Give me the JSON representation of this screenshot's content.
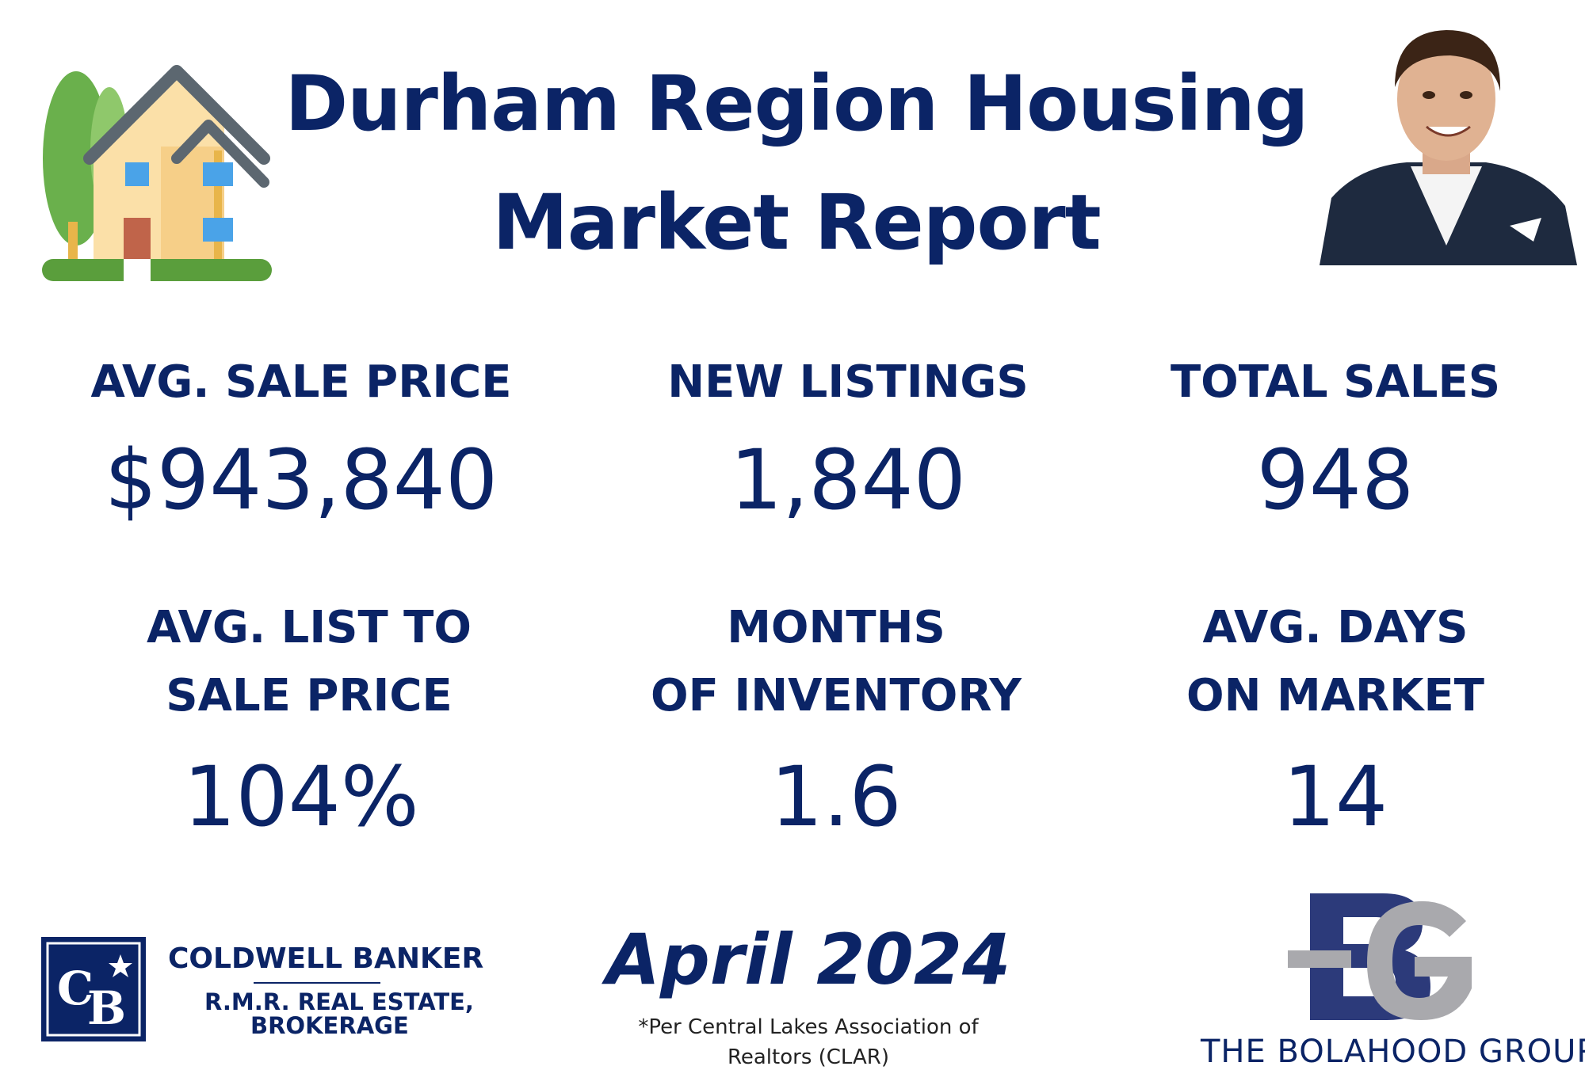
{
  "header": {
    "title_line1": "Durham Region Housing",
    "title_line2": "Market Report"
  },
  "stats": {
    "avg_sale_price": {
      "label": "AVG. SALE PRICE",
      "value": "$943,840"
    },
    "new_listings": {
      "label": "NEW LISTINGS",
      "value": "1,840"
    },
    "total_sales": {
      "label": "TOTAL SALES",
      "value": "948"
    },
    "list_to_sale": {
      "label_line1": "AVG. LIST TO",
      "label_line2": "SALE PRICE",
      "value": "104%"
    },
    "months_inventory": {
      "label_line1": "MONTHS",
      "label_line2": "OF INVENTORY",
      "value": "1.6"
    },
    "days_on_market": {
      "label_line1": "AVG. DAYS",
      "label_line2": "ON MARKET",
      "value": "14"
    }
  },
  "footer": {
    "brokerage_name": "COLDWELL BANKER",
    "brokerage_sub1": "R.M.R. REAL ESTATE,",
    "brokerage_sub2": "BROKERAGE",
    "report_date": "April 2024",
    "source_note_line1": "*Per Central Lakes Association of",
    "source_note_line2": "Realtors (CLAR)",
    "group_name": "THE BOLAHOOD GROUP"
  },
  "icons": {
    "house": "house-icon",
    "portrait": "agent-portrait",
    "cb_logo": "coldwell-banker-logo",
    "bg_logo": "bolahood-group-logo"
  },
  "colors": {
    "navy": "#0b2466",
    "house_wall": "#fbe0a8",
    "roof": "#5c6770",
    "tree": "#6ab04c",
    "window": "#4aa3e8",
    "door": "#c0644a",
    "grass": "#5a9e3c",
    "bg_logo_grey": "#a9a9ad"
  }
}
